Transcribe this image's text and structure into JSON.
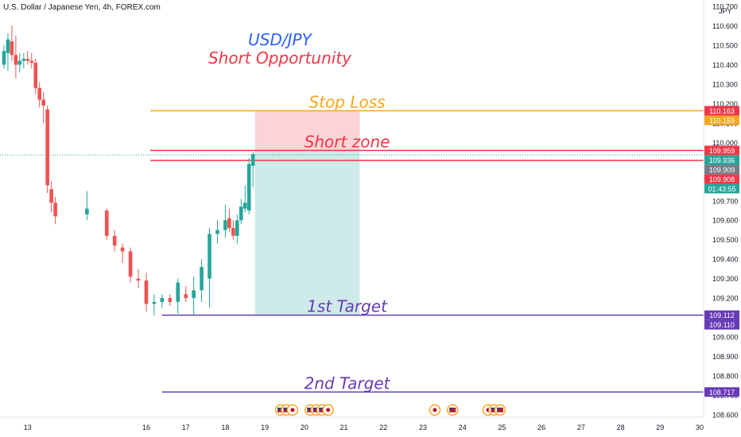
{
  "header": {
    "symbol_line": "U.S. Dollar / Japanese Yen, 4h, FOREX.com"
  },
  "chart_data": {
    "type": "candlestick",
    "currency_label": "JPY",
    "title": "USD/JPY",
    "subtitle": "Short Opportunity",
    "ylim": [
      108.6,
      110.7
    ],
    "xlim": [
      12.3,
      30.1
    ],
    "y_ticks": [
      "110.700",
      "110.600",
      "110.500",
      "110.400",
      "110.300",
      "110.200",
      "110.100",
      "110.000",
      "109.900",
      "109.800",
      "109.700",
      "109.600",
      "109.500",
      "109.400",
      "109.300",
      "109.200",
      "109.100",
      "109.000",
      "108.900",
      "108.800",
      "108.700",
      "108.600"
    ],
    "x_ticks": [
      "13",
      "16",
      "17",
      "18",
      "19",
      "20",
      "21",
      "22",
      "23",
      "24",
      "25",
      "26",
      "27",
      "28",
      "29",
      "30"
    ],
    "x_tick_positions": [
      13,
      16,
      17,
      18,
      19,
      20,
      21,
      22,
      23,
      24,
      25,
      26,
      27,
      28,
      29,
      30
    ],
    "candles": [
      {
        "t": 12.4,
        "o": 110.4,
        "h": 110.5,
        "l": 110.38,
        "c": 110.47
      },
      {
        "t": 12.5,
        "o": 110.46,
        "h": 110.56,
        "l": 110.37,
        "c": 110.53
      },
      {
        "t": 12.6,
        "o": 110.52,
        "h": 110.6,
        "l": 110.42,
        "c": 110.45
      },
      {
        "t": 12.7,
        "o": 110.45,
        "h": 110.55,
        "l": 110.33,
        "c": 110.4
      },
      {
        "t": 12.8,
        "o": 110.4,
        "h": 110.46,
        "l": 110.36,
        "c": 110.42
      },
      {
        "t": 12.9,
        "o": 110.42,
        "h": 110.46,
        "l": 110.38,
        "c": 110.43
      },
      {
        "t": 13.0,
        "o": 110.43,
        "h": 110.47,
        "l": 110.4,
        "c": 110.42
      },
      {
        "t": 13.1,
        "o": 110.42,
        "h": 110.46,
        "l": 110.38,
        "c": 110.41
      },
      {
        "t": 13.2,
        "o": 110.41,
        "h": 110.43,
        "l": 110.25,
        "c": 110.28
      },
      {
        "t": 13.3,
        "o": 110.28,
        "h": 110.31,
        "l": 110.18,
        "c": 110.22
      },
      {
        "t": 13.4,
        "o": 110.22,
        "h": 110.26,
        "l": 110.1,
        "c": 110.19
      },
      {
        "t": 13.5,
        "o": 110.17,
        "h": 110.19,
        "l": 109.74,
        "c": 109.78
      },
      {
        "t": 13.6,
        "o": 109.76,
        "h": 109.8,
        "l": 109.64,
        "c": 109.69
      },
      {
        "t": 13.7,
        "o": 109.69,
        "h": 109.72,
        "l": 109.58,
        "c": 109.62
      },
      {
        "t": 14.5,
        "o": 109.63,
        "h": 109.75,
        "l": 109.6,
        "c": 109.66
      },
      {
        "t": 15.0,
        "o": 109.65,
        "h": 109.66,
        "l": 109.5,
        "c": 109.52
      },
      {
        "t": 15.2,
        "o": 109.52,
        "h": 109.55,
        "l": 109.44,
        "c": 109.47
      },
      {
        "t": 15.4,
        "o": 109.46,
        "h": 109.48,
        "l": 109.38,
        "c": 109.44
      },
      {
        "t": 15.6,
        "o": 109.44,
        "h": 109.46,
        "l": 109.28,
        "c": 109.31
      },
      {
        "t": 15.8,
        "o": 109.3,
        "h": 109.35,
        "l": 109.25,
        "c": 109.29
      },
      {
        "t": 16.0,
        "o": 109.29,
        "h": 109.33,
        "l": 109.13,
        "c": 109.17
      },
      {
        "t": 16.2,
        "o": 109.17,
        "h": 109.22,
        "l": 109.11,
        "c": 109.18
      },
      {
        "t": 16.4,
        "o": 109.18,
        "h": 109.22,
        "l": 109.15,
        "c": 109.2
      },
      {
        "t": 16.6,
        "o": 109.2,
        "h": 109.22,
        "l": 109.16,
        "c": 109.18
      },
      {
        "t": 16.8,
        "o": 109.18,
        "h": 109.3,
        "l": 109.12,
        "c": 109.28
      },
      {
        "t": 17.0,
        "o": 109.22,
        "h": 109.26,
        "l": 109.18,
        "c": 109.2
      },
      {
        "t": 17.2,
        "o": 109.2,
        "h": 109.31,
        "l": 109.11,
        "c": 109.24
      },
      {
        "t": 17.4,
        "o": 109.24,
        "h": 109.4,
        "l": 109.18,
        "c": 109.36
      },
      {
        "t": 17.6,
        "o": 109.3,
        "h": 109.56,
        "l": 109.15,
        "c": 109.53
      },
      {
        "t": 17.8,
        "o": 109.53,
        "h": 109.6,
        "l": 109.48,
        "c": 109.55
      },
      {
        "t": 18.0,
        "o": 109.55,
        "h": 109.68,
        "l": 109.51,
        "c": 109.6
      },
      {
        "t": 18.1,
        "o": 109.61,
        "h": 109.66,
        "l": 109.54,
        "c": 109.56
      },
      {
        "t": 18.2,
        "o": 109.56,
        "h": 109.6,
        "l": 109.5,
        "c": 109.52
      },
      {
        "t": 18.3,
        "o": 109.52,
        "h": 109.63,
        "l": 109.48,
        "c": 109.6
      },
      {
        "t": 18.4,
        "o": 109.6,
        "h": 109.71,
        "l": 109.58,
        "c": 109.67
      },
      {
        "t": 18.5,
        "o": 109.66,
        "h": 109.78,
        "l": 109.64,
        "c": 109.69
      },
      {
        "t": 18.6,
        "o": 109.65,
        "h": 109.92,
        "l": 109.63,
        "c": 109.89
      },
      {
        "t": 18.7,
        "o": 109.88,
        "h": 109.95,
        "l": 109.77,
        "c": 109.94
      }
    ],
    "levels": [
      {
        "name": "Stop Loss",
        "value": 110.163,
        "color": "#f5a623",
        "x_from": 16.1,
        "x_to": 30.1
      },
      {
        "name": "Short zone",
        "value": 109.959,
        "color": "#f23645",
        "x_from": 16.1,
        "x_to": 30.1
      },
      {
        "name": "",
        "value": 109.908,
        "color": "#f23645",
        "x_from": 16.1,
        "x_to": 30.1
      },
      {
        "name": "1st Target",
        "value": 109.112,
        "color": "#673ab7",
        "x_from": 16.4,
        "x_to": 30.1
      },
      {
        "name": "2nd Target",
        "value": 108.717,
        "color": "#673ab7",
        "x_from": 16.4,
        "x_to": 30.1
      }
    ],
    "current_price": 109.936,
    "position_box": {
      "x_from": 18.75,
      "x_to": 21.4,
      "entry": 109.959,
      "stop": 110.163,
      "target": 109.112
    },
    "price_labels": [
      {
        "text": "110.163",
        "value": 110.163,
        "color": "#f23645"
      },
      {
        "text": "110.159",
        "value": 110.159,
        "color": "#f5a623"
      },
      {
        "text": "109.959",
        "value": 109.959,
        "color": "#f23645"
      },
      {
        "text": "109.936",
        "value": 109.936,
        "color": "#26a69a"
      },
      {
        "text": "01:43:55",
        "value": 109.885,
        "color": "#26a69a"
      },
      {
        "text": "109.909",
        "value": 109.909,
        "color": "#787b86"
      },
      {
        "text": "109.908",
        "value": 109.908,
        "color": "#f23645"
      },
      {
        "text": "109.112",
        "value": 109.112,
        "color": "#673ab7"
      },
      {
        "text": "109.110",
        "value": 109.11,
        "color": "#673ab7"
      },
      {
        "text": "108.717",
        "value": 108.717,
        "color": "#673ab7"
      }
    ],
    "events": [
      {
        "t": 19.4,
        "kind": "us"
      },
      {
        "t": 19.55,
        "kind": "us"
      },
      {
        "t": 19.7,
        "kind": "jp"
      },
      {
        "t": 20.15,
        "kind": "us"
      },
      {
        "t": 20.3,
        "kind": "us"
      },
      {
        "t": 20.45,
        "kind": "us"
      },
      {
        "t": 20.6,
        "kind": "jp"
      },
      {
        "t": 23.3,
        "kind": "jp"
      },
      {
        "t": 23.75,
        "kind": "us"
      },
      {
        "t": 24.65,
        "kind": "jp"
      },
      {
        "t": 24.8,
        "kind": "us"
      },
      {
        "t": 24.95,
        "kind": "us"
      }
    ],
    "colors": {
      "up": "#26a69a",
      "down": "#ef5350",
      "title": "#2962ff",
      "subtitle": "#f23645"
    }
  }
}
